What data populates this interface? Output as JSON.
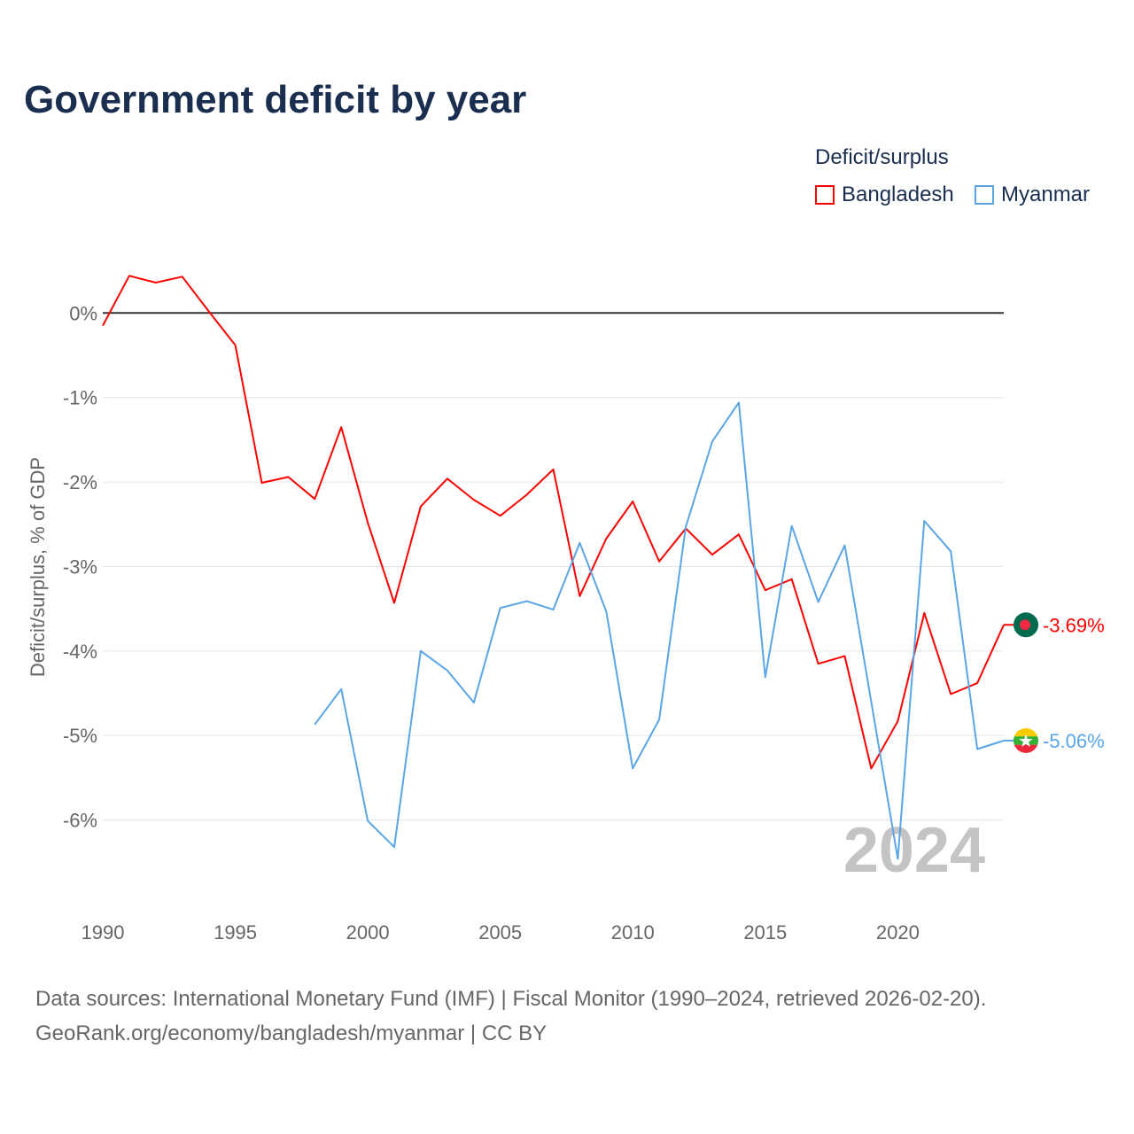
{
  "title": "Government deficit by year",
  "legend": {
    "title": "Deficit/surplus",
    "items": [
      {
        "label": "Bangladesh",
        "color": "#ff0000"
      },
      {
        "label": "Myanmar",
        "color": "#5aa5e6"
      }
    ]
  },
  "watermark_year": "2024",
  "source_lines": [
    "Data sources: International Monetary Fund (IMF) | Fiscal Monitor (1990–2024, retrieved 2026-02-20).",
    "GeoRank.org/economy/bangladesh/myanmar | CC BY"
  ],
  "chart_data": {
    "type": "line",
    "title": "Government deficit by year",
    "xlabel": "",
    "ylabel": "Deficit/surplus, % of GDP",
    "xlim": [
      1990,
      2024
    ],
    "ylim": [
      -7,
      0.8
    ],
    "x_ticks": [
      1990,
      1995,
      2000,
      2005,
      2010,
      2015,
      2020
    ],
    "x_tick_labels": [
      "1990",
      "1995",
      "2000",
      "2005",
      "2010",
      "2015",
      "2020"
    ],
    "y_ticks": [
      0,
      -1,
      -2,
      -3,
      -4,
      -5,
      -6
    ],
    "y_tick_labels": [
      "0%",
      "-1%",
      "-2%",
      "-3%",
      "-4%",
      "-5%",
      "-6%"
    ],
    "grid": true,
    "legend_position": "top-right",
    "series": [
      {
        "name": "Bangladesh",
        "color": "#ff0000",
        "end_label": "-3.69%",
        "x": [
          1990,
          1991,
          1992,
          1993,
          1994,
          1995,
          1996,
          1997,
          1998,
          1999,
          2000,
          2001,
          2002,
          2003,
          2004,
          2005,
          2006,
          2007,
          2008,
          2009,
          2010,
          2011,
          2012,
          2013,
          2014,
          2015,
          2016,
          2017,
          2018,
          2019,
          2020,
          2021,
          2022,
          2023,
          2024
        ],
        "values": [
          -0.15,
          0.44,
          0.36,
          0.43,
          0.02,
          -0.38,
          -2.01,
          -1.94,
          -2.2,
          -1.35,
          -2.48,
          -3.43,
          -2.29,
          -1.96,
          -2.21,
          -2.4,
          -2.15,
          -1.85,
          -3.35,
          -2.67,
          -2.23,
          -2.94,
          -2.55,
          -2.86,
          -2.62,
          -3.28,
          -3.15,
          -4.15,
          -4.06,
          -5.39,
          -4.83,
          -3.55,
          -4.51,
          -4.38,
          -3.69
        ]
      },
      {
        "name": "Myanmar",
        "color": "#5aa5e6",
        "end_label": "-5.06%",
        "x": [
          1998,
          1999,
          2000,
          2001,
          2002,
          2003,
          2004,
          2005,
          2006,
          2007,
          2008,
          2009,
          2010,
          2011,
          2012,
          2013,
          2014,
          2015,
          2016,
          2017,
          2018,
          2019,
          2020,
          2021,
          2022,
          2023,
          2024
        ],
        "values": [
          -4.87,
          -4.45,
          -6.01,
          -6.32,
          -4.0,
          -4.23,
          -4.61,
          -3.49,
          -3.41,
          -3.51,
          -2.72,
          -3.53,
          -5.39,
          -4.81,
          -2.53,
          -1.52,
          -1.06,
          -4.31,
          -2.52,
          -3.42,
          -2.75,
          -4.6,
          -6.46,
          -2.46,
          -2.82,
          -5.16,
          -5.06
        ]
      }
    ]
  }
}
